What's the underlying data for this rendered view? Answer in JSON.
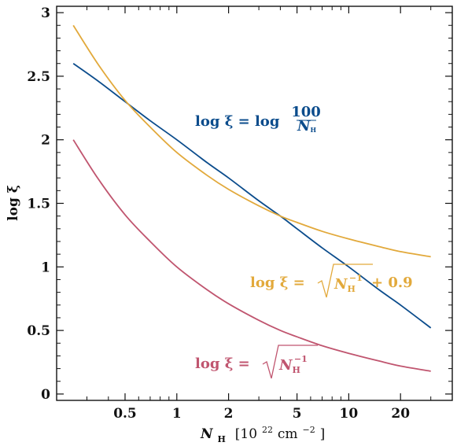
{
  "chart_data": {
    "type": "line",
    "xscale": "log",
    "xlabel_main": "N",
    "xlabel_sub": "H",
    "xlabel_unit_pre": "[10",
    "xlabel_unit_exp": "22",
    "xlabel_unit_post": " cm",
    "xlabel_unit_exp2": "−2",
    "xlabel_unit_close": "]",
    "ylabel": "log ξ",
    "xlim": [
      0.2,
      40
    ],
    "ylim": [
      -0.05,
      3.05
    ],
    "xticks": [
      0.5,
      1,
      2,
      5,
      10,
      20
    ],
    "xtick_labels": [
      "0.5",
      "1",
      "2",
      "5",
      "10",
      "20"
    ],
    "yticks": [
      0,
      0.5,
      1,
      1.5,
      2,
      2.5,
      3
    ],
    "ytick_labels": [
      "0",
      "0.5",
      "1",
      "1.5",
      "2",
      "2.5",
      "3"
    ],
    "colors": {
      "blue": "#0b4c8c",
      "orange": "#e2a93b",
      "red": "#c0556f",
      "axis": "#111111"
    },
    "series": [
      {
        "color": "#0b4c8c",
        "x": [
          0.25,
          0.35,
          0.5,
          0.7,
          1,
          1.5,
          2,
          3,
          4,
          5,
          7,
          10,
          15,
          20,
          30
        ],
        "y": [
          2.6,
          2.46,
          2.3,
          2.15,
          2.0,
          1.82,
          1.7,
          1.52,
          1.4,
          1.3,
          1.15,
          1.0,
          0.82,
          0.7,
          0.52
        ]
      },
      {
        "color": "#e2a93b",
        "x": [
          0.25,
          0.35,
          0.5,
          0.7,
          1,
          1.5,
          2,
          3,
          4,
          5,
          7,
          10,
          15,
          20,
          30
        ],
        "y": [
          2.9,
          2.59,
          2.31,
          2.1,
          1.9,
          1.72,
          1.61,
          1.48,
          1.4,
          1.35,
          1.28,
          1.22,
          1.16,
          1.12,
          1.08
        ]
      },
      {
        "color": "#c0556f",
        "x": [
          0.25,
          0.35,
          0.5,
          0.7,
          1,
          1.5,
          2,
          3,
          4,
          5,
          7,
          10,
          15,
          20,
          30
        ],
        "y": [
          2.0,
          1.69,
          1.41,
          1.2,
          1.0,
          0.82,
          0.71,
          0.58,
          0.5,
          0.45,
          0.38,
          0.32,
          0.26,
          0.22,
          0.18
        ]
      }
    ],
    "annotations": {
      "blue": {
        "lhs": "log ξ = log ",
        "num": "100",
        "den_main": "N",
        "den_sub": "H"
      },
      "orange": {
        "lhs": "log ξ = ",
        "rad_main": "N",
        "rad_sub": "H",
        "rad_exp": "−1",
        "rhs": " + 0.9"
      },
      "red": {
        "lhs": "log ξ = ",
        "rad_main": "N",
        "rad_sub": "H",
        "rad_exp": "−1"
      }
    }
  }
}
